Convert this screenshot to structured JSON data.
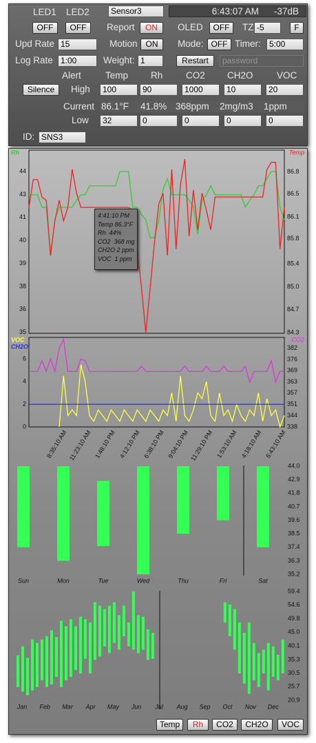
{
  "header": {
    "led1": "LED1",
    "led2": "LED2",
    "sensor": "Sensor3",
    "time": "6:43:07 AM",
    "signal": "-37dB"
  },
  "controls": {
    "led1_btn": "OFF",
    "led2_btn": "OFF",
    "report": "Report",
    "report_btn": "ON",
    "oled": "OLED",
    "oled_btn": "OFF",
    "tz": "TZ",
    "tz_value": "-5",
    "unit_btn": "F",
    "upd_rate": "Upd Rate",
    "upd_value": "15",
    "motion": "Motion",
    "motion_btn": "ON",
    "mode": "Mode:",
    "mode_btn": "OFF",
    "timer": "Timer:",
    "timer_value": "5:00",
    "log_rate": "Log Rate",
    "log_value": "1:00",
    "weight": "Weight:",
    "weight_value": "1",
    "restart": "Restart",
    "password": "password"
  },
  "alerts": {
    "title": "Alert",
    "silence": "Silence",
    "columns": [
      "Temp",
      "Rh",
      "CO2",
      "CH2O",
      "VOC"
    ],
    "high_label": "High",
    "high": [
      "100",
      "90",
      "1000",
      "10",
      "20"
    ],
    "current_label": "Current",
    "current": [
      "86.1°F",
      "41.8%",
      "368ppm",
      "2mg/m3",
      "1ppm"
    ],
    "low_label": "Low",
    "low": [
      "32",
      "0",
      "0",
      "0",
      "0"
    ]
  },
  "id": {
    "label": "ID:",
    "value": "SNS3"
  },
  "tooltip": [
    "4:41:10 PM",
    "Temp 86.3°F",
    "Rh  44%",
    "CO2  368 mg",
    "CH2O 2 ppm",
    "VOC  1 ppm"
  ],
  "buttons": [
    "Temp",
    "Rh",
    "CO2",
    "CH2O",
    "VOC"
  ],
  "chart_data": [
    {
      "type": "line",
      "xlim": [
        0,
        59
      ],
      "ylim": [
        34.95,
        45.2
      ],
      "yticks": [
        35,
        {
          "value": 36.29,
          "label": "36"
        },
        {
          "value": 37.57,
          "label": "38"
        },
        {
          "value": 38.86,
          "label": "39"
        },
        {
          "value": 40.14,
          "label": "40"
        },
        {
          "value": 41.43,
          "label": "41"
        },
        {
          "value": 42.71,
          "label": "43"
        },
        44
      ],
      "y2lim": [
        84.29,
        87.14
      ],
      "y2ticks": [
        84.3,
        {
          "value": 84.66,
          "label": "84.7"
        },
        {
          "value": 85.01,
          "label": "85.0"
        },
        {
          "value": 85.37,
          "label": "85.4"
        },
        {
          "value": 85.76,
          "label": "85.8"
        },
        86.1,
        {
          "value": 86.46,
          "label": "86.5"
        },
        86.8
      ],
      "series": [
        {
          "name": "Rh",
          "color": "#33cc33",
          "values": [
            42.7,
            42.7,
            42.7,
            42.0,
            42.0,
            39.3,
            41.3,
            42.0,
            42.0,
            42.0,
            42.0,
            42.4,
            42.7,
            42.7,
            43.2,
            43.2,
            43.2,
            43.2,
            43.2,
            43.2,
            43.2,
            44.0,
            44.0,
            44.0,
            42.0,
            42.0,
            41.6,
            41.3,
            40.3,
            40.3,
            41.3,
            43.0,
            43.6,
            42.7,
            42.7,
            42.7,
            42.7,
            42.4,
            42.0,
            40.5,
            42.4,
            42.7,
            43.2,
            42.7,
            42.7,
            42.7,
            42.7,
            42.7,
            42.7,
            42.7,
            42.0,
            42.4,
            42.7,
            43.2,
            43.2,
            43.6,
            44.0,
            44.0,
            42.0,
            41.3
          ]
        },
        {
          "name": "Temp",
          "color": "#ee2222",
          "axis": "y2",
          "values": [
            86.25,
            86.68,
            86.68,
            86.41,
            86.36,
            85.5,
            86.04,
            86.36,
            86.04,
            86.25,
            86.84,
            86.47,
            86.25,
            86.25,
            86.25,
            86.25,
            86.25,
            86.25,
            86.25,
            86.25,
            86.25,
            86.25,
            86.25,
            86.25,
            86.2,
            85.6,
            85.0,
            84.3,
            85.0,
            85.7,
            86.3,
            86.47,
            85.5,
            86.84,
            85.6,
            86.6,
            87.0,
            85.8,
            86.52,
            85.9,
            86.47,
            86.2,
            85.9,
            86.41,
            86.41,
            86.41,
            86.41,
            86.41,
            86.41,
            86.41,
            86.41,
            86.41,
            86.41,
            86.41,
            86.41,
            86.84,
            86.95,
            86.95,
            85.6,
            86.25
          ]
        }
      ]
    },
    {
      "type": "line",
      "xlim": [
        0,
        59
      ],
      "ylim": [
        0,
        7.9
      ],
      "yticks": [
        0,
        2,
        4,
        6
      ],
      "y2lim": [
        338,
        388
      ],
      "y2ticks": [
        338,
        {
          "value": 344.3,
          "label": "344"
        },
        {
          "value": 350.6,
          "label": "351"
        },
        {
          "value": 356.9,
          "label": "357"
        },
        {
          "value": 363.1,
          "label": "363"
        },
        {
          "value": 369.4,
          "label": "369"
        },
        {
          "value": 375.7,
          "label": "376"
        },
        382
      ],
      "xticks": [
        {
          "value": 8.4,
          "label": "8:35:10 AM"
        },
        {
          "value": 14.0,
          "label": "11:23:10 AM"
        },
        {
          "value": 19.6,
          "label": "1:48:10 PM"
        },
        {
          "value": 25.3,
          "label": "4:12:10 PM"
        },
        {
          "value": 30.9,
          "label": "6:38:10 PM"
        },
        {
          "value": 36.5,
          "label": "9:04:10 PM"
        },
        {
          "value": 42.1,
          "label": "11:29:10 PM"
        },
        {
          "value": 47.7,
          "label": "1:53:10 AM"
        },
        {
          "value": 53.4,
          "label": "4:18:10 AM"
        },
        {
          "value": 59,
          "label": "6:43:10 AM"
        }
      ],
      "series": [
        {
          "name": "VOC",
          "color": "#ffff44",
          "values": [
            null,
            null,
            null,
            null,
            null,
            null,
            null,
            0,
            4.5,
            1,
            1.5,
            1,
            5.5,
            4,
            1,
            0.5,
            1.5,
            1,
            0.5,
            1.5,
            1,
            0.5,
            1.5,
            1,
            0.5,
            1.5,
            1,
            0.5,
            1.5,
            1,
            0.5,
            1.5,
            1,
            3,
            0.5,
            4.5,
            1,
            0.5,
            1.5,
            3,
            2.5,
            4,
            1,
            0.5,
            3,
            1,
            1.5,
            0.5,
            2,
            1,
            0.5,
            1.5,
            1,
            3,
            0.5,
            2.5,
            1,
            1.5,
            0,
            1
          ]
        },
        {
          "name": "CH2O",
          "color": "#2233dd",
          "values": [
            2,
            2,
            2,
            2,
            2,
            2,
            2,
            2,
            2,
            2,
            2,
            2,
            2,
            2,
            2,
            2,
            2,
            2,
            2,
            2,
            2,
            2,
            2,
            2,
            2,
            2,
            2,
            2,
            2,
            2,
            2,
            2,
            2,
            2,
            2,
            2,
            2,
            2,
            2,
            2,
            2,
            2,
            2,
            2,
            2,
            2,
            2,
            2,
            2,
            2,
            2,
            2,
            2,
            2,
            2,
            2,
            2,
            2,
            2,
            2
          ]
        },
        {
          "name": "CO2",
          "color": "#dd33dd",
          "axis": "y2",
          "values": [
            369,
            369,
            369,
            375,
            369,
            376,
            369,
            382,
            387,
            369,
            369,
            369,
            376,
            375,
            369,
            369,
            369,
            369,
            369,
            369,
            369,
            369,
            369,
            369,
            369,
            369,
            372,
            369,
            369,
            369,
            369,
            369,
            369,
            369,
            369,
            369,
            372,
            369,
            369,
            369,
            369,
            372,
            369,
            369,
            369,
            372,
            369,
            369,
            369,
            369,
            372,
            363,
            369,
            369,
            369,
            369,
            375,
            363,
            369,
            369
          ]
        }
      ]
    },
    {
      "type": "bar",
      "color": "#33ff55",
      "categories": [
        "Sun",
        "Mon",
        "Tue",
        "Wed",
        "Thu",
        "Fri",
        "Sat"
      ],
      "low": [
        37.4,
        36.3,
        37.5,
        35.2,
        38.5,
        39.6,
        37.4
      ],
      "high": [
        44.0,
        44.0,
        42.8,
        44.0,
        44.0,
        44.0,
        44.0
      ],
      "ylim": [
        35.2,
        44.0
      ],
      "yticks": [
        {
          "value": 44,
          "label": "44.0"
        },
        42.9,
        41.8,
        40.7,
        39.6,
        38.5,
        37.4,
        36.3,
        35.2
      ]
    },
    {
      "type": "bar",
      "color": "#33ff55",
      "xlim": [
        -0.86,
        55.6
      ],
      "xticks": [
        {
          "value": 0.86,
          "label": "Jan"
        },
        {
          "value": 5.6,
          "label": "Feb"
        },
        {
          "value": 10.3,
          "label": "Mar"
        },
        {
          "value": 15.1,
          "label": "Apr"
        },
        {
          "value": 19.8,
          "label": "May"
        },
        {
          "value": 24.6,
          "label": "Jun"
        },
        {
          "value": 29.3,
          "label": "Jul"
        },
        {
          "value": 34.1,
          "label": "Aug"
        },
        {
          "value": 38.8,
          "label": "Sep"
        },
        {
          "value": 43.5,
          "label": "Oct"
        },
        {
          "value": 48.3,
          "label": "Nov"
        },
        {
          "value": 53.0,
          "label": "Dec"
        }
      ],
      "low": [
        25.6,
        24,
        22.7,
        24.4,
        25.6,
        28,
        25.6,
        26.5,
        29.2,
        25.6,
        28,
        29.2,
        31.6,
        30.4,
        35.6,
        30.4,
        35.2,
        36.4,
        40,
        37.6,
        41.2,
        38.8,
        43.6,
        40,
        38.8,
        37.6,
        38.8,
        35.2,
        35.6,
        null,
        null,
        null,
        null,
        null,
        null,
        null,
        null,
        null,
        null,
        null,
        null,
        null,
        null,
        48.4,
        43.6,
        38.8,
        30.4,
        26.8,
        23.2,
        28,
        25.6,
        30.4,
        24.4,
        29.2,
        28,
        30.4
      ],
      "high": [
        36.8,
        40,
        35.9,
        42.4,
        41.2,
        42.4,
        43.6,
        45.7,
        43.3,
        49,
        47.1,
        49.6,
        47.1,
        50.5,
        49.6,
        48.4,
        55.6,
        54.4,
        53.2,
        54.4,
        55.6,
        51,
        54.4,
        48.4,
        59.4,
        51,
        50.5,
        46,
        44.8,
        null,
        null,
        null,
        null,
        null,
        null,
        null,
        null,
        null,
        null,
        null,
        null,
        null,
        null,
        55.6,
        54.8,
        53.2,
        48.4,
        44.8,
        48.4,
        41.2,
        37.6,
        38.8,
        41.2,
        40,
        37,
        42.4
      ],
      "ylim": [
        20.9,
        59.4
      ],
      "yticks": [
        59.4,
        54.6,
        49.8,
        {
          "value": 45,
          "label": "45.0"
        },
        40.1,
        35.3,
        30.5,
        25.7,
        20.9
      ]
    }
  ]
}
